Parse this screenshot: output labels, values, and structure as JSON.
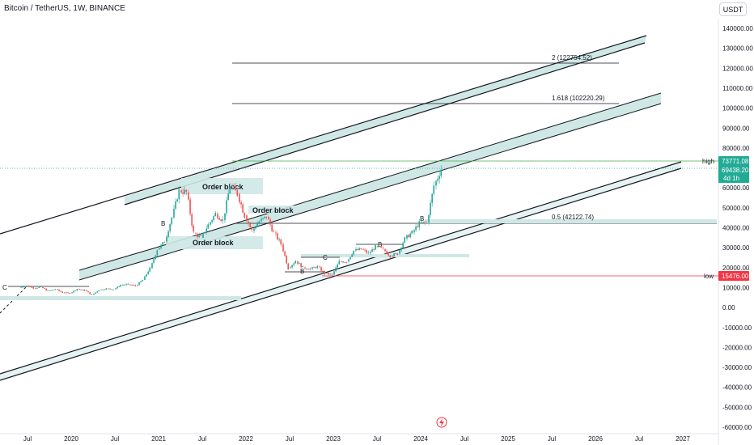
{
  "header": {
    "symbol_title": "Bitcoin / TetherUS, 1W, BINANCE",
    "currency_button": "USDT"
  },
  "colors": {
    "up": "#26a69a",
    "down": "#ef5350",
    "channel_fill": "#cfe8e6",
    "line": "#131722",
    "high_line": "#4caf50",
    "low_line": "#f23645",
    "fib_level": "#131722"
  },
  "chart_data": {
    "type": "candlestick",
    "timeframe": "1W",
    "y_axis": {
      "min": -60000,
      "max": 140000,
      "ticks": [
        "140000.00",
        "130000.00",
        "120000.00",
        "110000.00",
        "100000.00",
        "90000.00",
        "80000.00",
        "70000.00",
        "60000.00",
        "50000.00",
        "40000.00",
        "30000.00",
        "20000.00",
        "10000.00",
        "0.00",
        "-10000.00",
        "-20000.00",
        "-30000.00",
        "-40000.00",
        "-50000.00",
        "-60000.00"
      ]
    },
    "x_axis": {
      "ticks": [
        "Jul",
        "2020",
        "Jul",
        "2021",
        "Jul",
        "2022",
        "Jul",
        "2023",
        "Jul",
        "2024",
        "Jul",
        "2025",
        "Jul",
        "2026",
        "Jul",
        "2027"
      ]
    },
    "price_labels": {
      "high_label": "high",
      "high_value": "73771.08",
      "current_value": "69438.20",
      "countdown": "4d 1h",
      "low_label": "low",
      "low_value": "15476.00"
    },
    "fib_levels": [
      {
        "label": "2 (122754.52)",
        "value": 122754.52
      },
      {
        "label": "1.618 (102220.29)",
        "value": 102220.29
      },
      {
        "label": "0.5 (42122.74)",
        "value": 42122.74
      }
    ],
    "annotations": [
      "Order block",
      "Order block",
      "Order block",
      "B",
      "C",
      "B",
      "C",
      "B",
      "B"
    ],
    "price_path": [
      [
        "2019-06",
        10000,
        11000
      ],
      [
        "2019-07",
        11000,
        9800
      ],
      [
        "2019-08",
        9800,
        10200
      ],
      [
        "2019-09",
        10200,
        8300
      ],
      [
        "2019-10",
        8300,
        9200
      ],
      [
        "2019-11",
        9200,
        7500
      ],
      [
        "2019-12",
        7500,
        7200
      ],
      [
        "2020-01",
        7200,
        9300
      ],
      [
        "2020-02",
        9300,
        8600
      ],
      [
        "2020-03",
        8600,
        6400
      ],
      [
        "2020-04",
        6400,
        8800
      ],
      [
        "2020-05",
        8800,
        9500
      ],
      [
        "2020-06",
        9500,
        9100
      ],
      [
        "2020-07",
        9100,
        11300
      ],
      [
        "2020-08",
        11300,
        11600
      ],
      [
        "2020-09",
        11600,
        10800
      ],
      [
        "2020-10",
        10800,
        13800
      ],
      [
        "2020-11",
        13800,
        19700
      ],
      [
        "2020-12",
        19700,
        29000
      ],
      [
        "2021-01",
        29000,
        33100
      ],
      [
        "2021-02",
        33100,
        45100
      ],
      [
        "2021-03",
        45100,
        58800
      ],
      [
        "2021-04",
        58800,
        57700
      ],
      [
        "2021-05",
        57700,
        37300
      ],
      [
        "2021-06",
        37300,
        35000
      ],
      [
        "2021-07",
        35000,
        41500
      ],
      [
        "2021-08",
        41500,
        47100
      ],
      [
        "2021-09",
        47100,
        43800
      ],
      [
        "2021-10",
        43800,
        61300
      ],
      [
        "2021-11",
        61300,
        57000
      ],
      [
        "2021-12",
        57000,
        46200
      ],
      [
        "2022-01",
        46200,
        38500
      ],
      [
        "2022-02",
        38500,
        43200
      ],
      [
        "2022-03",
        43200,
        45500
      ],
      [
        "2022-04",
        45500,
        37600
      ],
      [
        "2022-05",
        37600,
        31800
      ],
      [
        "2022-06",
        31800,
        19900
      ],
      [
        "2022-07",
        19900,
        23300
      ],
      [
        "2022-08",
        23300,
        20100
      ],
      [
        "2022-09",
        20100,
        19400
      ],
      [
        "2022-10",
        19400,
        20500
      ],
      [
        "2022-11",
        20500,
        17100
      ],
      [
        "2022-12",
        17100,
        16500
      ],
      [
        "2023-01",
        16500,
        23100
      ],
      [
        "2023-02",
        23100,
        23100
      ],
      [
        "2023-03",
        23100,
        28500
      ],
      [
        "2023-04",
        28500,
        29200
      ],
      [
        "2023-05",
        29200,
        27200
      ],
      [
        "2023-06",
        27200,
        30500
      ],
      [
        "2023-07",
        30500,
        29200
      ],
      [
        "2023-08",
        29200,
        26000
      ],
      [
        "2023-09",
        26000,
        27000
      ],
      [
        "2023-10",
        27000,
        34600
      ],
      [
        "2023-11",
        34600,
        37700
      ],
      [
        "2023-12",
        37700,
        42300
      ],
      [
        "2024-01",
        42300,
        42600
      ],
      [
        "2024-02",
        42600,
        61200
      ],
      [
        "2024-03",
        61200,
        69438.2
      ]
    ]
  }
}
